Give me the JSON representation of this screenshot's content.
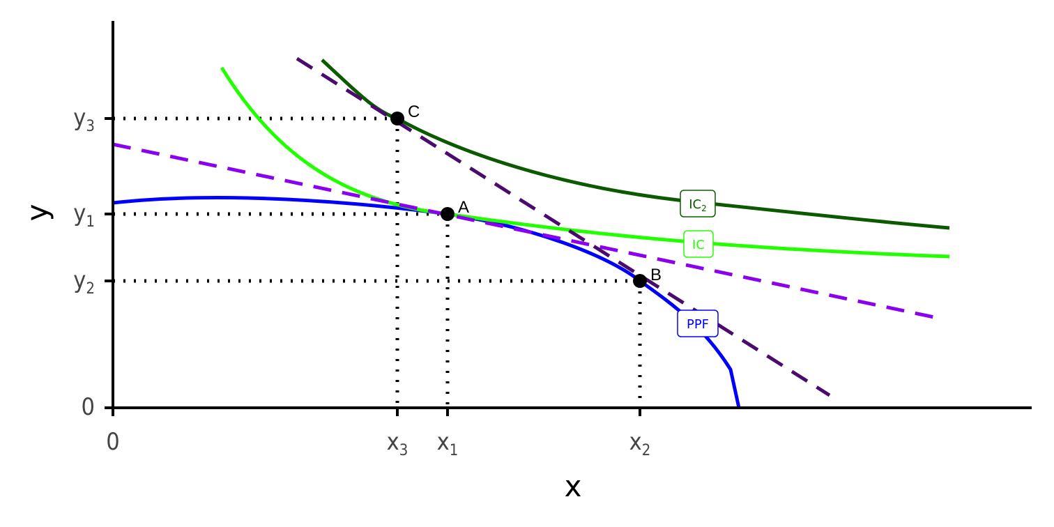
{
  "axes": {
    "x_label": "x",
    "y_label": "y"
  },
  "x_ticks": [
    {
      "base": "0"
    },
    {
      "base": "x",
      "sub": "3"
    },
    {
      "base": "x",
      "sub": "1"
    },
    {
      "base": "x",
      "sub": "2"
    }
  ],
  "y_ticks": [
    {
      "base": "0"
    },
    {
      "base": "y",
      "sub": "2"
    },
    {
      "base": "y",
      "sub": "1"
    },
    {
      "base": "y",
      "sub": "3"
    }
  ],
  "points": [
    {
      "label": "A"
    },
    {
      "label": "B"
    },
    {
      "label": "C"
    }
  ],
  "curve_labels": [
    {
      "base": "IC",
      "sub": "2"
    },
    {
      "base": "IC"
    },
    {
      "base": "PPF"
    }
  ]
}
